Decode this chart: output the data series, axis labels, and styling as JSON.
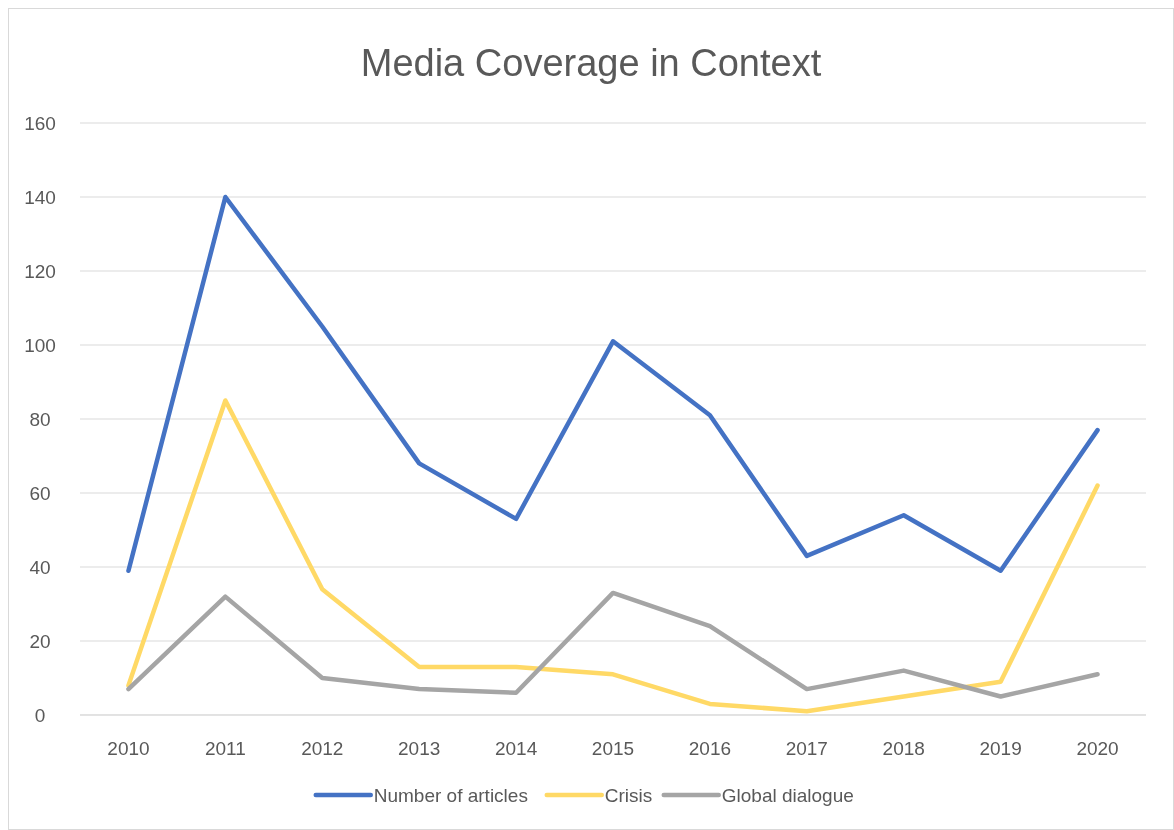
{
  "chart_data": {
    "type": "line",
    "title": "Media Coverage in Context",
    "categories": [
      "2010",
      "2011",
      "2012",
      "2013",
      "2014",
      "2015",
      "2016",
      "2017",
      "2018",
      "2019",
      "2020"
    ],
    "series": [
      {
        "name": "Number of articles",
        "color": "#4472c4",
        "values": [
          39,
          140,
          105,
          68,
          53,
          101,
          81,
          43,
          54,
          39,
          77
        ]
      },
      {
        "name": "Crisis",
        "color": "#ffd966",
        "values": [
          8,
          85,
          34,
          13,
          13,
          11,
          3,
          1,
          5,
          9,
          62
        ]
      },
      {
        "name": "Global dialogue",
        "color": "#a5a5a5",
        "values": [
          7,
          32,
          10,
          7,
          6,
          33,
          24,
          7,
          12,
          5,
          11
        ]
      }
    ],
    "ylim": [
      0,
      160
    ],
    "yticks": [
      0,
      20,
      40,
      60,
      80,
      100,
      120,
      140,
      160
    ],
    "grid": "y",
    "legend": "bottom",
    "marker": "none",
    "line_style": "solid"
  }
}
